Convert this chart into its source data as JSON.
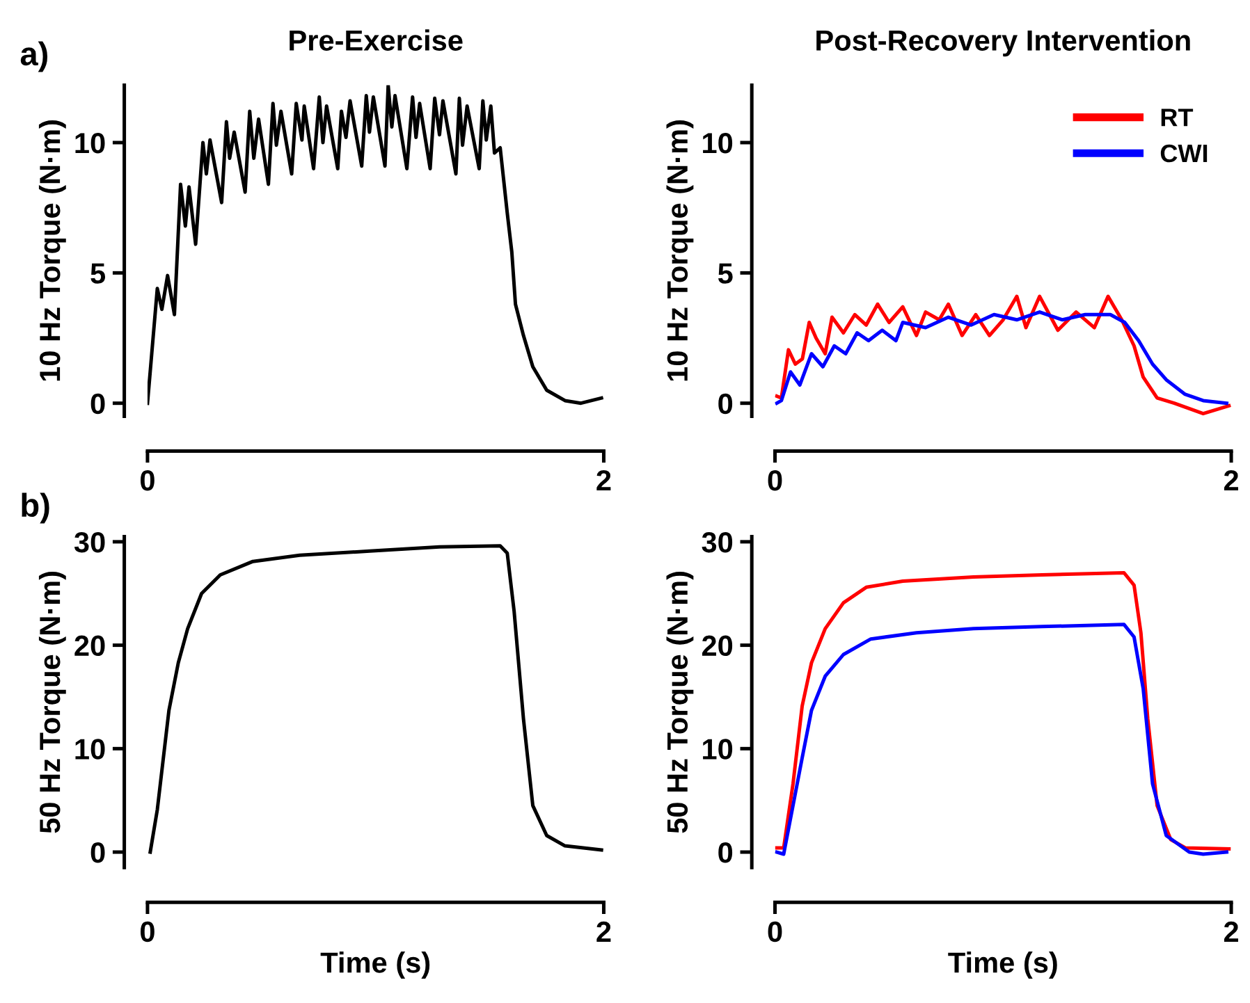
{
  "chart_data": [
    {
      "type": "line",
      "title": "Pre-Exercise",
      "ylabel": "10 Hz Torque (N·m)",
      "annotations": [
        "a)"
      ],
      "xlim": [
        0,
        2
      ],
      "xticks": [
        0,
        2
      ],
      "ylim": [
        -0.5,
        12.2
      ],
      "yticks": [
        0,
        5,
        10
      ],
      "grid": false,
      "legend": false,
      "series": [
        {
          "color": "#000000",
          "x": [
            0.0,
            0.043,
            0.063,
            0.088,
            0.118,
            0.145,
            0.166,
            0.182,
            0.211,
            0.243,
            0.258,
            0.274,
            0.325,
            0.346,
            0.36,
            0.38,
            0.428,
            0.448,
            0.466,
            0.487,
            0.53,
            0.55,
            0.565,
            0.585,
            0.632,
            0.652,
            0.677,
            0.687,
            0.728,
            0.753,
            0.769,
            0.785,
            0.834,
            0.85,
            0.87,
            0.888,
            0.939,
            0.959,
            0.973,
            0.99,
            1.041,
            1.055,
            1.071,
            1.085,
            1.137,
            1.162,
            1.177,
            1.193,
            1.239,
            1.259,
            1.28,
            1.295,
            1.352,
            1.367,
            1.381,
            1.401,
            1.454,
            1.47,
            1.485,
            1.505,
            1.521,
            1.546,
            1.577,
            1.597,
            1.613,
            1.648,
            1.689,
            1.75,
            1.83,
            1.9,
            1.99
          ],
          "values": [
            0.0,
            4.4,
            3.6,
            4.9,
            3.4,
            8.4,
            6.8,
            8.3,
            6.1,
            10.0,
            8.8,
            10.1,
            7.7,
            10.8,
            9.4,
            10.4,
            8.1,
            11.2,
            9.4,
            10.9,
            8.4,
            11.5,
            9.9,
            11.2,
            8.8,
            11.5,
            10.1,
            11.4,
            9.0,
            11.75,
            10.0,
            11.4,
            9.0,
            11.2,
            10.2,
            11.6,
            9.1,
            11.8,
            10.4,
            11.75,
            9.1,
            12.2,
            10.6,
            11.8,
            9.0,
            11.75,
            10.2,
            11.5,
            9.0,
            11.7,
            10.3,
            11.6,
            8.8,
            11.7,
            9.9,
            11.4,
            9.0,
            11.6,
            10.1,
            11.4,
            9.6,
            9.8,
            7.3,
            5.8,
            3.8,
            2.6,
            1.4,
            0.5,
            0.1,
            0.0,
            0.2
          ]
        }
      ]
    },
    {
      "type": "line",
      "title": "Post-Recovery Intervention",
      "ylabel": "10 Hz Torque (N·m)",
      "xlim": [
        0,
        2
      ],
      "xticks": [
        0,
        2
      ],
      "ylim": [
        -0.5,
        12.2
      ],
      "yticks": [
        0,
        5,
        10
      ],
      "grid": false,
      "legend": "top right",
      "series": [
        {
          "name": "RT",
          "color": "#ff0000",
          "x": [
            0.008,
            0.028,
            0.059,
            0.089,
            0.12,
            0.15,
            0.18,
            0.22,
            0.25,
            0.3,
            0.35,
            0.4,
            0.45,
            0.5,
            0.56,
            0.62,
            0.66,
            0.72,
            0.76,
            0.82,
            0.88,
            0.94,
            1.0,
            1.06,
            1.1,
            1.16,
            1.24,
            1.32,
            1.4,
            1.46,
            1.52,
            1.574,
            1.614,
            1.675,
            1.75,
            1.877,
            1.99
          ],
          "values": [
            0.27,
            0.2,
            2.05,
            1.5,
            1.7,
            3.1,
            2.5,
            1.9,
            3.3,
            2.7,
            3.4,
            3.0,
            3.8,
            3.1,
            3.7,
            2.6,
            3.5,
            3.2,
            3.8,
            2.6,
            3.4,
            2.6,
            3.2,
            4.1,
            2.9,
            4.1,
            2.8,
            3.5,
            2.9,
            4.1,
            3.2,
            2.2,
            1.0,
            0.2,
            0.0,
            -0.4,
            -0.1
          ]
        },
        {
          "name": "CWI",
          "color": "#0000ff",
          "x": [
            0.008,
            0.028,
            0.068,
            0.109,
            0.16,
            0.21,
            0.26,
            0.31,
            0.36,
            0.41,
            0.47,
            0.53,
            0.56,
            0.66,
            0.76,
            0.86,
            0.96,
            1.06,
            1.16,
            1.26,
            1.36,
            1.47,
            1.533,
            1.594,
            1.655,
            1.715,
            1.796,
            1.877,
            1.98
          ],
          "values": [
            0.0,
            0.1,
            1.2,
            0.7,
            1.9,
            1.4,
            2.2,
            1.9,
            2.7,
            2.4,
            2.8,
            2.4,
            3.1,
            2.9,
            3.3,
            3.0,
            3.4,
            3.2,
            3.5,
            3.2,
            3.4,
            3.4,
            3.1,
            2.4,
            1.5,
            0.9,
            0.35,
            0.1,
            0.0
          ]
        }
      ]
    },
    {
      "type": "line",
      "xlabel": "Time (s)",
      "ylabel": "50 Hz Torque (N·m)",
      "annotations": [
        "b)"
      ],
      "xlim": [
        0,
        2
      ],
      "xticks": [
        0,
        2
      ],
      "ylim": [
        -1.5,
        30.5
      ],
      "yticks": [
        0,
        10,
        20,
        30
      ],
      "grid": false,
      "legend": false,
      "series": [
        {
          "color": "#000000",
          "x": [
            0.012,
            0.043,
            0.094,
            0.135,
            0.176,
            0.237,
            0.319,
            0.462,
            0.667,
            0.974,
            1.28,
            1.546,
            1.577,
            1.607,
            1.648,
            1.689,
            1.75,
            1.83,
            1.99
          ],
          "values": [
            0.0,
            4.1,
            13.7,
            18.3,
            21.6,
            25.0,
            26.8,
            28.1,
            28.7,
            29.1,
            29.5,
            29.6,
            28.9,
            23.3,
            12.9,
            4.5,
            1.6,
            0.6,
            0.2
          ]
        }
      ]
    },
    {
      "type": "line",
      "xlabel": "Time (s)",
      "ylabel": "50 Hz Torque (N·m)",
      "xlim": [
        0,
        2
      ],
      "xticks": [
        0,
        2
      ],
      "ylim": [
        -1.5,
        30.5
      ],
      "yticks": [
        0,
        10,
        20,
        30
      ],
      "grid": false,
      "legend": false,
      "series": [
        {
          "color": "#ff0000",
          "x": [
            0.008,
            0.038,
            0.079,
            0.119,
            0.16,
            0.22,
            0.3,
            0.4,
            0.56,
            0.87,
            1.17,
            1.53,
            1.574,
            1.604,
            1.634,
            1.675,
            1.735,
            1.8,
            1.99
          ],
          "values": [
            0.4,
            0.4,
            6.6,
            14.1,
            18.3,
            21.6,
            24.1,
            25.6,
            26.2,
            26.6,
            26.8,
            27.0,
            25.8,
            21.2,
            12.9,
            4.5,
            1.2,
            0.4,
            0.3
          ]
        },
        {
          "color": "#0000ff",
          "x": [
            0.008,
            0.038,
            0.079,
            0.119,
            0.16,
            0.22,
            0.3,
            0.42,
            0.62,
            0.87,
            1.17,
            1.53,
            1.574,
            1.614,
            1.655,
            1.715,
            1.816,
            1.877,
            1.98
          ],
          "values": [
            0.0,
            -0.2,
            4.5,
            9.1,
            13.7,
            17.0,
            19.1,
            20.6,
            21.2,
            21.6,
            21.8,
            22.0,
            20.8,
            15.8,
            6.6,
            1.6,
            0.0,
            -0.2,
            0.0
          ]
        }
      ]
    }
  ]
}
